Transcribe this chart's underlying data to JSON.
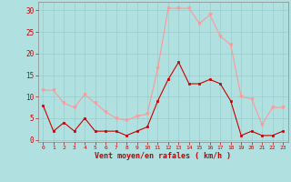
{
  "hours": [
    0,
    1,
    2,
    3,
    4,
    5,
    6,
    7,
    8,
    9,
    10,
    11,
    12,
    13,
    14,
    15,
    16,
    17,
    18,
    19,
    20,
    21,
    22,
    23
  ],
  "wind_mean": [
    8,
    2,
    4,
    2,
    5,
    2,
    2,
    2,
    1,
    2,
    3,
    9,
    14,
    18,
    13,
    13,
    14,
    13,
    9,
    1,
    2,
    1,
    1,
    2
  ],
  "wind_gust": [
    11.5,
    11.5,
    8.5,
    7.5,
    10.5,
    8.5,
    6.5,
    5,
    4.5,
    5.5,
    6,
    16.5,
    30.5,
    30.5,
    30.5,
    27,
    29,
    24,
    22,
    10,
    9.5,
    3.5,
    7.5,
    7.5
  ],
  "mean_color": "#cc0000",
  "gust_color": "#ff9999",
  "bg_color": "#b0e0e0",
  "grid_color": "#99cccc",
  "xlabel": "Vent moyen/en rafales ( km/h )",
  "ylabel_vals": [
    0,
    5,
    10,
    15,
    20,
    25,
    30
  ],
  "ylim": [
    -0.5,
    32
  ],
  "xlim": [
    -0.5,
    23.5
  ],
  "axis_color": "#cc0000",
  "tick_color": "#cc0000",
  "spine_color": "#888888"
}
